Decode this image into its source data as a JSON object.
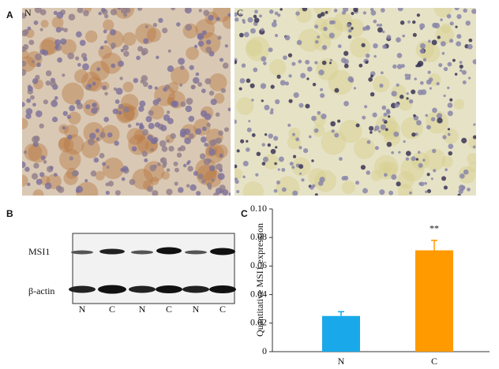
{
  "figure": {
    "panel_labels": [
      "A",
      "B",
      "C"
    ],
    "micrographs": [
      "N",
      "C"
    ],
    "blot": {
      "rows": [
        "MSI1",
        "β-actin"
      ],
      "lanes": [
        "N",
        "C",
        "N",
        "C",
        "N",
        "C"
      ]
    }
  },
  "chart_data": {
    "type": "bar",
    "ylabel": "Quantitative MSI1 expression",
    "categories": [
      "N",
      "C"
    ],
    "values": [
      0.025,
      0.071
    ],
    "errors": [
      0.003,
      0.007
    ],
    "colors": [
      "#19a9ea",
      "#ff9a00"
    ],
    "annotation": "**",
    "ylim": [
      0,
      0.1
    ],
    "yticks": [
      0,
      0.02,
      0.04,
      0.06,
      0.08,
      {
        "value": 0.1,
        "label": "0.10"
      }
    ],
    "grid": false
  }
}
